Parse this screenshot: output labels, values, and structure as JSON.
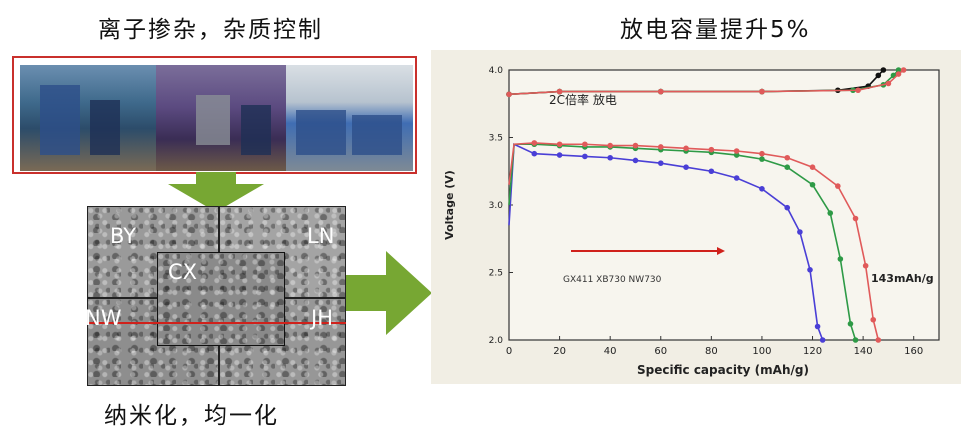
{
  "captions": {
    "top_left": "离子掺杂，杂质控制",
    "top_right": "放电容量提升5%",
    "bottom": "纳米化，均一化"
  },
  "sem_labels": {
    "by": "BY",
    "ln": "LN",
    "cx": "CX",
    "nw": "NW",
    "jh": "JH"
  },
  "colors": {
    "arrow": "#77a733",
    "frame_red": "#c9302c",
    "cut_line": "#d0211b"
  },
  "chart_data": {
    "type": "line",
    "title": "2C倍率 放电",
    "xlabel": "Specific capacity (mAh/g)",
    "ylabel": "Voltage (V)",
    "xlim": [
      0,
      170
    ],
    "ylim": [
      2.0,
      4.0
    ],
    "xticks": [
      "0",
      "20",
      "40",
      "60",
      "80",
      "100",
      "120",
      "140",
      "160"
    ],
    "yticks": [
      "2.0",
      "2.5",
      "3.0",
      "3.5",
      "4.0"
    ],
    "legend_text": "GX411  XB730  NW730",
    "annotation": "143mAh/g",
    "series": [
      {
        "color": "#4a3fd6",
        "discharge": [
          [
            10,
            3.38
          ],
          [
            20,
            3.37
          ],
          [
            30,
            3.36
          ],
          [
            40,
            3.35
          ],
          [
            50,
            3.33
          ],
          [
            60,
            3.31
          ],
          [
            70,
            3.28
          ],
          [
            80,
            3.25
          ],
          [
            90,
            3.2
          ],
          [
            100,
            3.12
          ],
          [
            110,
            2.98
          ],
          [
            115,
            2.8
          ],
          [
            119,
            2.52
          ],
          [
            122,
            2.1
          ],
          [
            124,
            2.0
          ]
        ]
      },
      {
        "color": "#2e9a46",
        "discharge": [
          [
            10,
            3.45
          ],
          [
            20,
            3.44
          ],
          [
            30,
            3.43
          ],
          [
            40,
            3.43
          ],
          [
            50,
            3.42
          ],
          [
            60,
            3.41
          ],
          [
            70,
            3.4
          ],
          [
            80,
            3.39
          ],
          [
            90,
            3.37
          ],
          [
            100,
            3.34
          ],
          [
            110,
            3.28
          ],
          [
            120,
            3.15
          ],
          [
            127,
            2.94
          ],
          [
            131,
            2.6
          ],
          [
            135,
            2.12
          ],
          [
            137,
            2.0
          ]
        ]
      },
      {
        "color": "#e05a5a",
        "discharge": [
          [
            10,
            3.46
          ],
          [
            20,
            3.45
          ],
          [
            30,
            3.45
          ],
          [
            40,
            3.44
          ],
          [
            50,
            3.44
          ],
          [
            60,
            3.43
          ],
          [
            70,
            3.42
          ],
          [
            80,
            3.41
          ],
          [
            90,
            3.4
          ],
          [
            100,
            3.38
          ],
          [
            110,
            3.35
          ],
          [
            120,
            3.28
          ],
          [
            130,
            3.14
          ],
          [
            137,
            2.9
          ],
          [
            141,
            2.55
          ],
          [
            144,
            2.15
          ],
          [
            146,
            2.0
          ]
        ]
      }
    ],
    "charge": [
      {
        "color": "#111111",
        "points": [
          [
            0,
            3.82
          ],
          [
            20,
            3.84
          ],
          [
            60,
            3.84
          ],
          [
            100,
            3.84
          ],
          [
            130,
            3.85
          ],
          [
            142,
            3.88
          ],
          [
            146,
            3.96
          ],
          [
            148,
            4.0
          ]
        ]
      },
      {
        "color": "#2e9a46",
        "points": [
          [
            0,
            3.82
          ],
          [
            20,
            3.84
          ],
          [
            60,
            3.84
          ],
          [
            100,
            3.84
          ],
          [
            136,
            3.85
          ],
          [
            148,
            3.89
          ],
          [
            152,
            3.96
          ],
          [
            154,
            4.0
          ]
        ]
      },
      {
        "color": "#e05a5a",
        "points": [
          [
            0,
            3.82
          ],
          [
            20,
            3.84
          ],
          [
            60,
            3.84
          ],
          [
            100,
            3.84
          ],
          [
            138,
            3.85
          ],
          [
            150,
            3.9
          ],
          [
            154,
            3.97
          ],
          [
            156,
            4.0
          ]
        ]
      }
    ]
  }
}
